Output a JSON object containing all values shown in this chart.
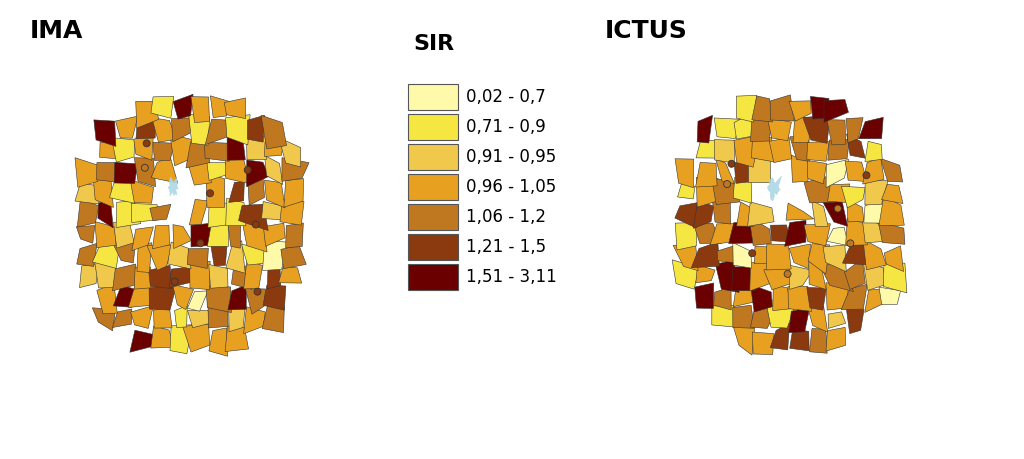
{
  "title_left": "IMA",
  "title_right": "ICTUS",
  "legend_title": "SIR",
  "legend_labels": [
    "0,02 - 0,7",
    "0,71 - 0,9",
    "0,91 - 0,95",
    "0,96 - 1,05",
    "1,06 - 1,2",
    "1,21 - 1,5",
    "1,51 - 3,11"
  ],
  "legend_colors": [
    "#FFFAAA",
    "#F5E642",
    "#F0C84B",
    "#E8A020",
    "#C07820",
    "#8B3A10",
    "#6B0000"
  ],
  "water_color": "#ADD8E6",
  "background_color": "#FFFFFF",
  "border_color": "#333333",
  "title_fontsize": 18,
  "legend_title_fontsize": 16,
  "legend_label_fontsize": 12
}
